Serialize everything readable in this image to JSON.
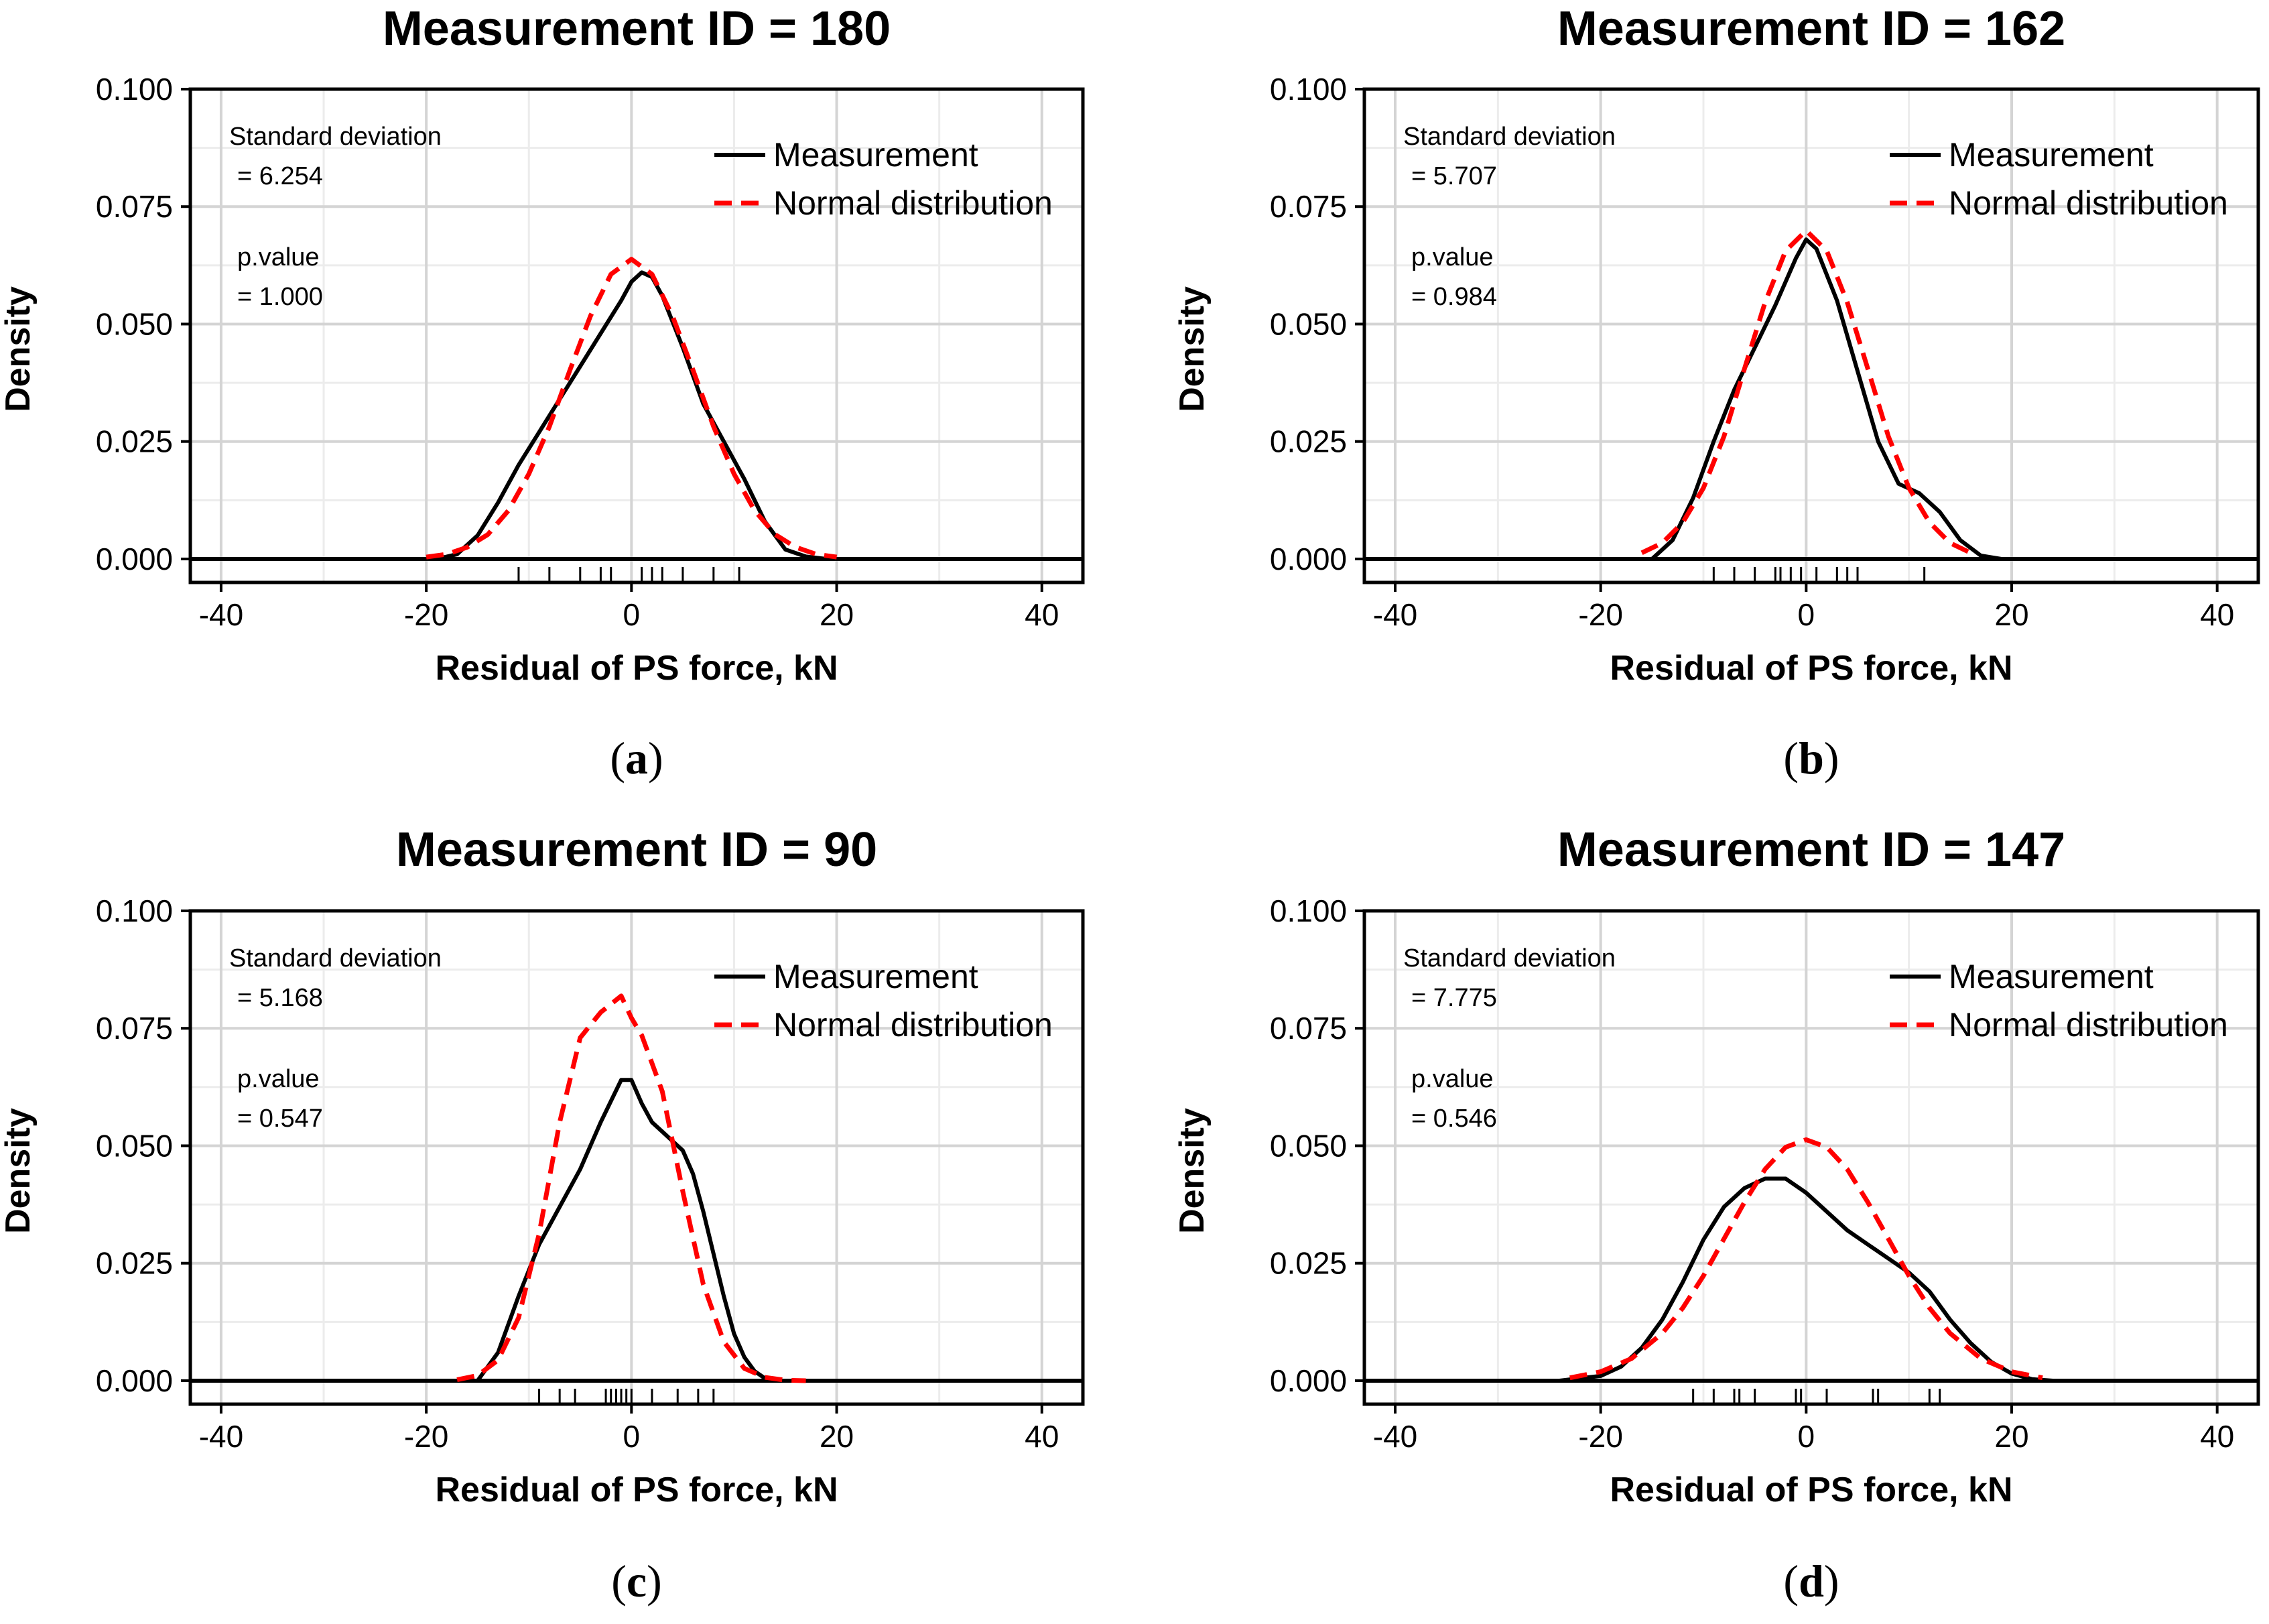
{
  "chart_data": [
    {
      "type": "line",
      "caption": "(a)",
      "caption_letter": "a",
      "title": "Measurement ID = 180",
      "xlabel": "Residual of PS force, kN",
      "ylabel": "Density",
      "xlim": [
        -43,
        44
      ],
      "ylim": [
        -0.005,
        0.1
      ],
      "x_ticks": [
        -40,
        -20,
        0,
        20,
        40
      ],
      "y_ticks": [
        0.0,
        0.025,
        0.05,
        0.075,
        0.1
      ],
      "x_tick_labels": [
        "-40",
        "-20",
        "0",
        "20",
        "40"
      ],
      "y_tick_labels": [
        "0.000",
        "0.025",
        "0.050",
        "0.075",
        "0.100"
      ],
      "grid": true,
      "legend_position": "top-right",
      "stats": {
        "sd_label": "Standard deviation",
        "sd_value": "= 6.254",
        "p_label": "p.value",
        "p_value": "= 1.000"
      },
      "series": [
        {
          "name": "Measurement",
          "style": "solid",
          "color": "#000000",
          "x": [
            -19,
            -17,
            -15,
            -13,
            -11,
            -9,
            -7,
            -5,
            -3,
            -1,
            0,
            1,
            2,
            3,
            5,
            7,
            9,
            11,
            13,
            15,
            17,
            19
          ],
          "y": [
            0.0,
            0.001,
            0.005,
            0.012,
            0.02,
            0.027,
            0.034,
            0.041,
            0.048,
            0.055,
            0.059,
            0.061,
            0.06,
            0.056,
            0.045,
            0.033,
            0.025,
            0.017,
            0.008,
            0.002,
            0.0005,
            0.0
          ]
        },
        {
          "name": "Normal distribution",
          "style": "dashed",
          "color": "#ff0000",
          "x": [
            -20,
            -18,
            -16,
            -14,
            -12,
            -10,
            -8,
            -6,
            -4,
            -2,
            0,
            2,
            4,
            6,
            8,
            10,
            12,
            14,
            16,
            18,
            20
          ],
          "y": [
            0.0004,
            0.001,
            0.0025,
            0.0052,
            0.0103,
            0.0181,
            0.0282,
            0.0402,
            0.0517,
            0.0606,
            0.0638,
            0.0606,
            0.0517,
            0.0402,
            0.0282,
            0.0181,
            0.0103,
            0.0052,
            0.0025,
            0.001,
            0.0004
          ]
        }
      ],
      "rug": [
        -11,
        -8,
        -5,
        -3,
        -2,
        1,
        2,
        3,
        5,
        8,
        10.5
      ]
    },
    {
      "type": "line",
      "caption": "(b)",
      "caption_letter": "b",
      "title": "Measurement ID = 162",
      "xlabel": "Residual of PS force, kN",
      "ylabel": "Density",
      "xlim": [
        -43,
        44
      ],
      "ylim": [
        -0.005,
        0.1
      ],
      "x_ticks": [
        -40,
        -20,
        0,
        20,
        40
      ],
      "y_ticks": [
        0.0,
        0.025,
        0.05,
        0.075,
        0.1
      ],
      "x_tick_labels": [
        "-40",
        "-20",
        "0",
        "20",
        "40"
      ],
      "y_tick_labels": [
        "0.000",
        "0.025",
        "0.050",
        "0.075",
        "0.100"
      ],
      "grid": true,
      "legend_position": "top-right",
      "stats": {
        "sd_label": "Standard deviation",
        "sd_value": "= 5.707",
        "p_label": "p.value",
        "p_value": "= 0.984"
      },
      "series": [
        {
          "name": "Measurement",
          "style": "solid",
          "color": "#000000",
          "x": [
            -15,
            -13,
            -11,
            -9,
            -7,
            -5,
            -3,
            -1,
            0,
            1,
            3,
            5,
            7,
            9,
            11,
            13,
            15,
            17,
            19
          ],
          "y": [
            0.0,
            0.004,
            0.013,
            0.025,
            0.036,
            0.045,
            0.054,
            0.064,
            0.068,
            0.066,
            0.055,
            0.04,
            0.025,
            0.016,
            0.014,
            0.01,
            0.004,
            0.0007,
            0.0
          ]
        },
        {
          "name": "Normal distribution",
          "style": "dashed",
          "color": "#ff0000",
          "x": [
            -16,
            -14,
            -12,
            -10,
            -8,
            -6,
            -4,
            -2,
            0,
            2,
            4,
            6,
            8,
            10,
            12,
            14,
            16
          ],
          "y": [
            0.0013,
            0.0034,
            0.0078,
            0.0151,
            0.0261,
            0.0405,
            0.0546,
            0.0656,
            0.0699,
            0.0656,
            0.0546,
            0.0405,
            0.0261,
            0.0151,
            0.0078,
            0.0034,
            0.0013
          ]
        }
      ],
      "rug": [
        -9,
        -7,
        -5,
        -3,
        -2.5,
        -1.5,
        -0.5,
        1,
        3,
        4,
        5,
        11.5
      ]
    },
    {
      "type": "line",
      "caption": "(c)",
      "caption_letter": "c",
      "title": "Measurement ID = 90",
      "xlabel": "Residual of PS force, kN",
      "ylabel": "Density",
      "xlim": [
        -43,
        44
      ],
      "ylim": [
        -0.005,
        0.1
      ],
      "x_ticks": [
        -40,
        -20,
        0,
        20,
        40
      ],
      "y_ticks": [
        0.0,
        0.025,
        0.05,
        0.075,
        0.1
      ],
      "x_tick_labels": [
        "-40",
        "-20",
        "0",
        "20",
        "40"
      ],
      "y_tick_labels": [
        "0.000",
        "0.025",
        "0.050",
        "0.075",
        "0.100"
      ],
      "grid": true,
      "legend_position": "top-right",
      "stats": {
        "sd_label": "Standard deviation",
        "sd_value": "= 5.168",
        "p_label": "p.value",
        "p_value": "= 0.547"
      },
      "series": [
        {
          "name": "Measurement",
          "style": "solid",
          "color": "#000000",
          "x": [
            -15,
            -13,
            -11,
            -9,
            -7,
            -5,
            -3,
            -1,
            0,
            1,
            2,
            3,
            4,
            5,
            6,
            7,
            8,
            9,
            10,
            11,
            12,
            13,
            14
          ],
          "y": [
            0.0,
            0.006,
            0.018,
            0.029,
            0.037,
            0.045,
            0.055,
            0.064,
            0.064,
            0.059,
            0.055,
            0.053,
            0.051,
            0.049,
            0.044,
            0.036,
            0.027,
            0.018,
            0.01,
            0.005,
            0.002,
            0.0005,
            0.0
          ]
        },
        {
          "name": "Normal distribution",
          "style": "dashed",
          "color": "#ff0000",
          "x": [
            -17,
            -15,
            -13,
            -11,
            -9,
            -7,
            -5,
            -3,
            -1,
            0,
            1,
            3,
            5,
            7,
            9,
            11,
            13,
            15,
            17
          ],
          "y": [
            0.0002,
            0.0011,
            0.0044,
            0.0134,
            0.0313,
            0.055,
            0.073,
            0.0784,
            0.0819,
            0.0772,
            0.0735,
            0.0616,
            0.0403,
            0.0205,
            0.0083,
            0.0026,
            0.0007,
            0.0001,
            0.0
          ]
        }
      ],
      "rug": [
        -9,
        -7,
        -5.5,
        -2.5,
        -2,
        -1.5,
        -1,
        -0.5,
        0,
        2,
        4.5,
        6.5,
        8
      ]
    },
    {
      "type": "line",
      "caption": "(d)",
      "caption_letter": "d",
      "title": "Measurement ID = 147",
      "xlabel": "Residual of PS force, kN",
      "ylabel": "Density",
      "xlim": [
        -43,
        44
      ],
      "ylim": [
        -0.005,
        0.1
      ],
      "x_ticks": [
        -40,
        -20,
        0,
        20,
        40
      ],
      "y_ticks": [
        0.0,
        0.025,
        0.05,
        0.075,
        0.1
      ],
      "x_tick_labels": [
        "-40",
        "-20",
        "0",
        "20",
        "40"
      ],
      "y_tick_labels": [
        "0.000",
        "0.025",
        "0.050",
        "0.075",
        "0.100"
      ],
      "grid": true,
      "legend_position": "top-right",
      "stats": {
        "sd_label": "Standard deviation",
        "sd_value": "= 7.775",
        "p_label": "p.value",
        "p_value": "= 0.546"
      },
      "series": [
        {
          "name": "Measurement",
          "style": "solid",
          "color": "#000000",
          "x": [
            -24,
            -22,
            -20,
            -18,
            -16,
            -14,
            -12,
            -10,
            -8,
            -6,
            -4,
            -2,
            0,
            2,
            4,
            6,
            8,
            10,
            12,
            14,
            16,
            18,
            20,
            22,
            24
          ],
          "y": [
            0.0,
            0.0005,
            0.001,
            0.003,
            0.007,
            0.013,
            0.021,
            0.03,
            0.037,
            0.041,
            0.043,
            0.043,
            0.04,
            0.036,
            0.032,
            0.029,
            0.026,
            0.023,
            0.019,
            0.013,
            0.008,
            0.004,
            0.0015,
            0.0003,
            0.0
          ]
        },
        {
          "name": "Normal distribution",
          "style": "dashed",
          "color": "#ff0000",
          "x": [
            -23,
            -20,
            -17,
            -14,
            -12,
            -10,
            -8,
            -6,
            -4,
            -2,
            0,
            2,
            4,
            6,
            8,
            10,
            12,
            14,
            17,
            20,
            23
          ],
          "y": [
            0.0006,
            0.0019,
            0.0047,
            0.0101,
            0.0155,
            0.0223,
            0.0302,
            0.038,
            0.045,
            0.0497,
            0.0513,
            0.0497,
            0.045,
            0.038,
            0.0302,
            0.0223,
            0.0155,
            0.0101,
            0.0047,
            0.0019,
            0.0006
          ]
        }
      ],
      "rug": [
        -11,
        -9,
        -7,
        -6.5,
        -5,
        -1,
        -0.5,
        2,
        6.5,
        7,
        12,
        13
      ]
    }
  ]
}
